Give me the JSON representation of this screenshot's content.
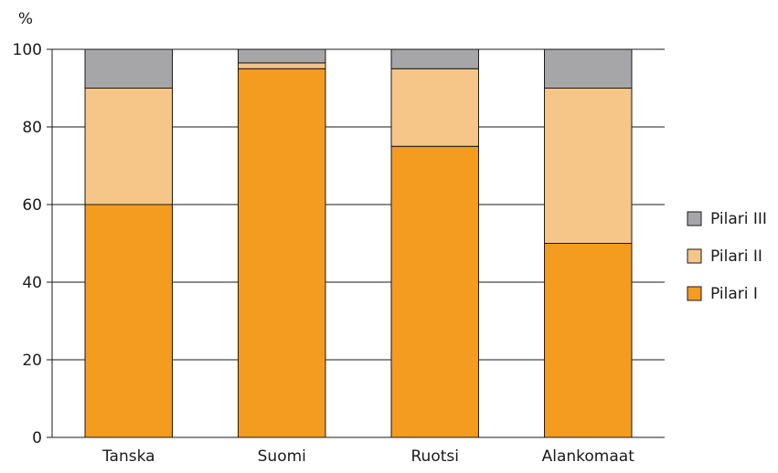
{
  "chart_data": {
    "type": "bar",
    "stacked": true,
    "unit_label": "%",
    "categories": [
      "Tanska",
      "Suomi",
      "Ruotsi",
      "Alankomaat"
    ],
    "series": [
      {
        "name": "Pilari I",
        "color": "#f39c1f",
        "values": [
          60,
          95,
          75,
          50
        ]
      },
      {
        "name": "Pilari II",
        "color": "#f5c687",
        "values": [
          30,
          1.5,
          20,
          40
        ]
      },
      {
        "name": "Pilari III",
        "color": "#a6a6a8",
        "values": [
          10,
          3.5,
          5,
          10
        ]
      }
    ],
    "ylim": [
      0,
      100
    ],
    "yticks": [
      0,
      20,
      40,
      60,
      80,
      100
    ],
    "grid": true,
    "legend_position": "right",
    "legend_order": [
      "Pilari III",
      "Pilari II",
      "Pilari I"
    ]
  }
}
